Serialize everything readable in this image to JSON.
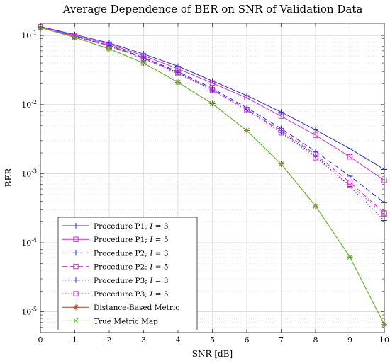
{
  "chart_data": {
    "type": "line",
    "title": "Average Dependence of BER on SNR of Validation Data",
    "xlabel": "SNR [dB]",
    "ylabel": "BER",
    "x_scale": "linear",
    "y_scale": "log",
    "xlim": [
      0,
      10
    ],
    "ylim": [
      5e-06,
      0.15
    ],
    "grid": true,
    "minor_grid": true,
    "legend_position": "bottom-left",
    "x_ticks": [
      "0",
      "1",
      "2",
      "3",
      "4",
      "5",
      "6",
      "7",
      "8",
      "9",
      "10"
    ],
    "y_ticks": [
      {
        "value": 0.1,
        "base": "10",
        "exp": "-1"
      },
      {
        "value": 0.01,
        "base": "10",
        "exp": "-2"
      },
      {
        "value": 0.001,
        "base": "10",
        "exp": "-3"
      },
      {
        "value": 0.0001,
        "base": "10",
        "exp": "-4"
      },
      {
        "value": 1e-05,
        "base": "10",
        "exp": "-5"
      }
    ],
    "x": [
      0,
      1,
      2,
      3,
      4,
      5,
      6,
      7,
      8,
      9,
      10
    ],
    "series": [
      {
        "name": "Procedure P1; I = 3",
        "label_prefix": "Procedure P1; ",
        "label_var": "I",
        "label_suffix": " = 3",
        "color": "#2b2bdc",
        "dash": "solid",
        "marker": "plus",
        "values": [
          0.135,
          0.103,
          0.078,
          0.054,
          0.036,
          0.022,
          0.0135,
          0.0078,
          0.0043,
          0.0023,
          0.00115
        ]
      },
      {
        "name": "Procedure P1; I = 5",
        "label_prefix": "Procedure P1; ",
        "label_var": "I",
        "label_suffix": " = 5",
        "color": "#cc33cc",
        "dash": "solid",
        "marker": "square",
        "values": [
          0.134,
          0.1,
          0.075,
          0.051,
          0.033,
          0.0205,
          0.0125,
          0.0068,
          0.0036,
          0.00175,
          0.0008
        ]
      },
      {
        "name": "Procedure P2; I = 3",
        "label_prefix": "Procedure P2; ",
        "label_var": "I",
        "label_suffix": " = 3",
        "color": "#2b2bdc",
        "dash": "dash",
        "marker": "plus",
        "values": [
          0.133,
          0.098,
          0.072,
          0.048,
          0.03,
          0.0172,
          0.009,
          0.0045,
          0.0021,
          0.00092,
          0.00038
        ]
      },
      {
        "name": "Procedure P2; I = 5",
        "label_prefix": "Procedure P2; ",
        "label_var": "I",
        "label_suffix": " = 5",
        "color": "#cc33cc",
        "dash": "dash",
        "marker": "square",
        "values": [
          0.133,
          0.097,
          0.071,
          0.047,
          0.029,
          0.0165,
          0.0085,
          0.0042,
          0.0019,
          0.00075,
          0.00027
        ]
      },
      {
        "name": "Procedure P3; I = 3",
        "label_prefix": "Procedure P3; ",
        "label_var": "I",
        "label_suffix": " = 3",
        "color": "#2b2bdc",
        "dash": "dot",
        "marker": "plus",
        "values": [
          0.132,
          0.097,
          0.071,
          0.046,
          0.029,
          0.0163,
          0.0084,
          0.004,
          0.0018,
          0.00065,
          0.00021
        ]
      },
      {
        "name": "Procedure P3; I = 5",
        "label_prefix": "Procedure P3; ",
        "label_var": "I",
        "label_suffix": " = 5",
        "color": "#cc33cc",
        "dash": "dot",
        "marker": "square",
        "values": [
          0.132,
          0.096,
          0.07,
          0.046,
          0.028,
          0.016,
          0.0082,
          0.0039,
          0.0017,
          0.00068,
          0.00026
        ]
      },
      {
        "name": "Distance-Based Metric",
        "label_prefix": "Distance-Based Metric",
        "label_var": "",
        "label_suffix": "",
        "color": "#9a4a2a",
        "dash": "solid",
        "marker": "asterisk",
        "values": [
          0.13,
          0.094,
          0.064,
          0.04,
          0.021,
          0.0103,
          0.0042,
          0.00138,
          0.00034,
          6.2e-05,
          6.5e-06
        ]
      },
      {
        "name": "True Metric Map",
        "label_prefix": "True Metric Map",
        "label_var": "",
        "label_suffix": "",
        "color": "#5ac02a",
        "dash": "solid",
        "marker": "x",
        "values": [
          0.13,
          0.094,
          0.064,
          0.04,
          0.021,
          0.0103,
          0.0042,
          0.00138,
          0.00034,
          6.2e-05,
          6.5e-06
        ]
      }
    ]
  }
}
